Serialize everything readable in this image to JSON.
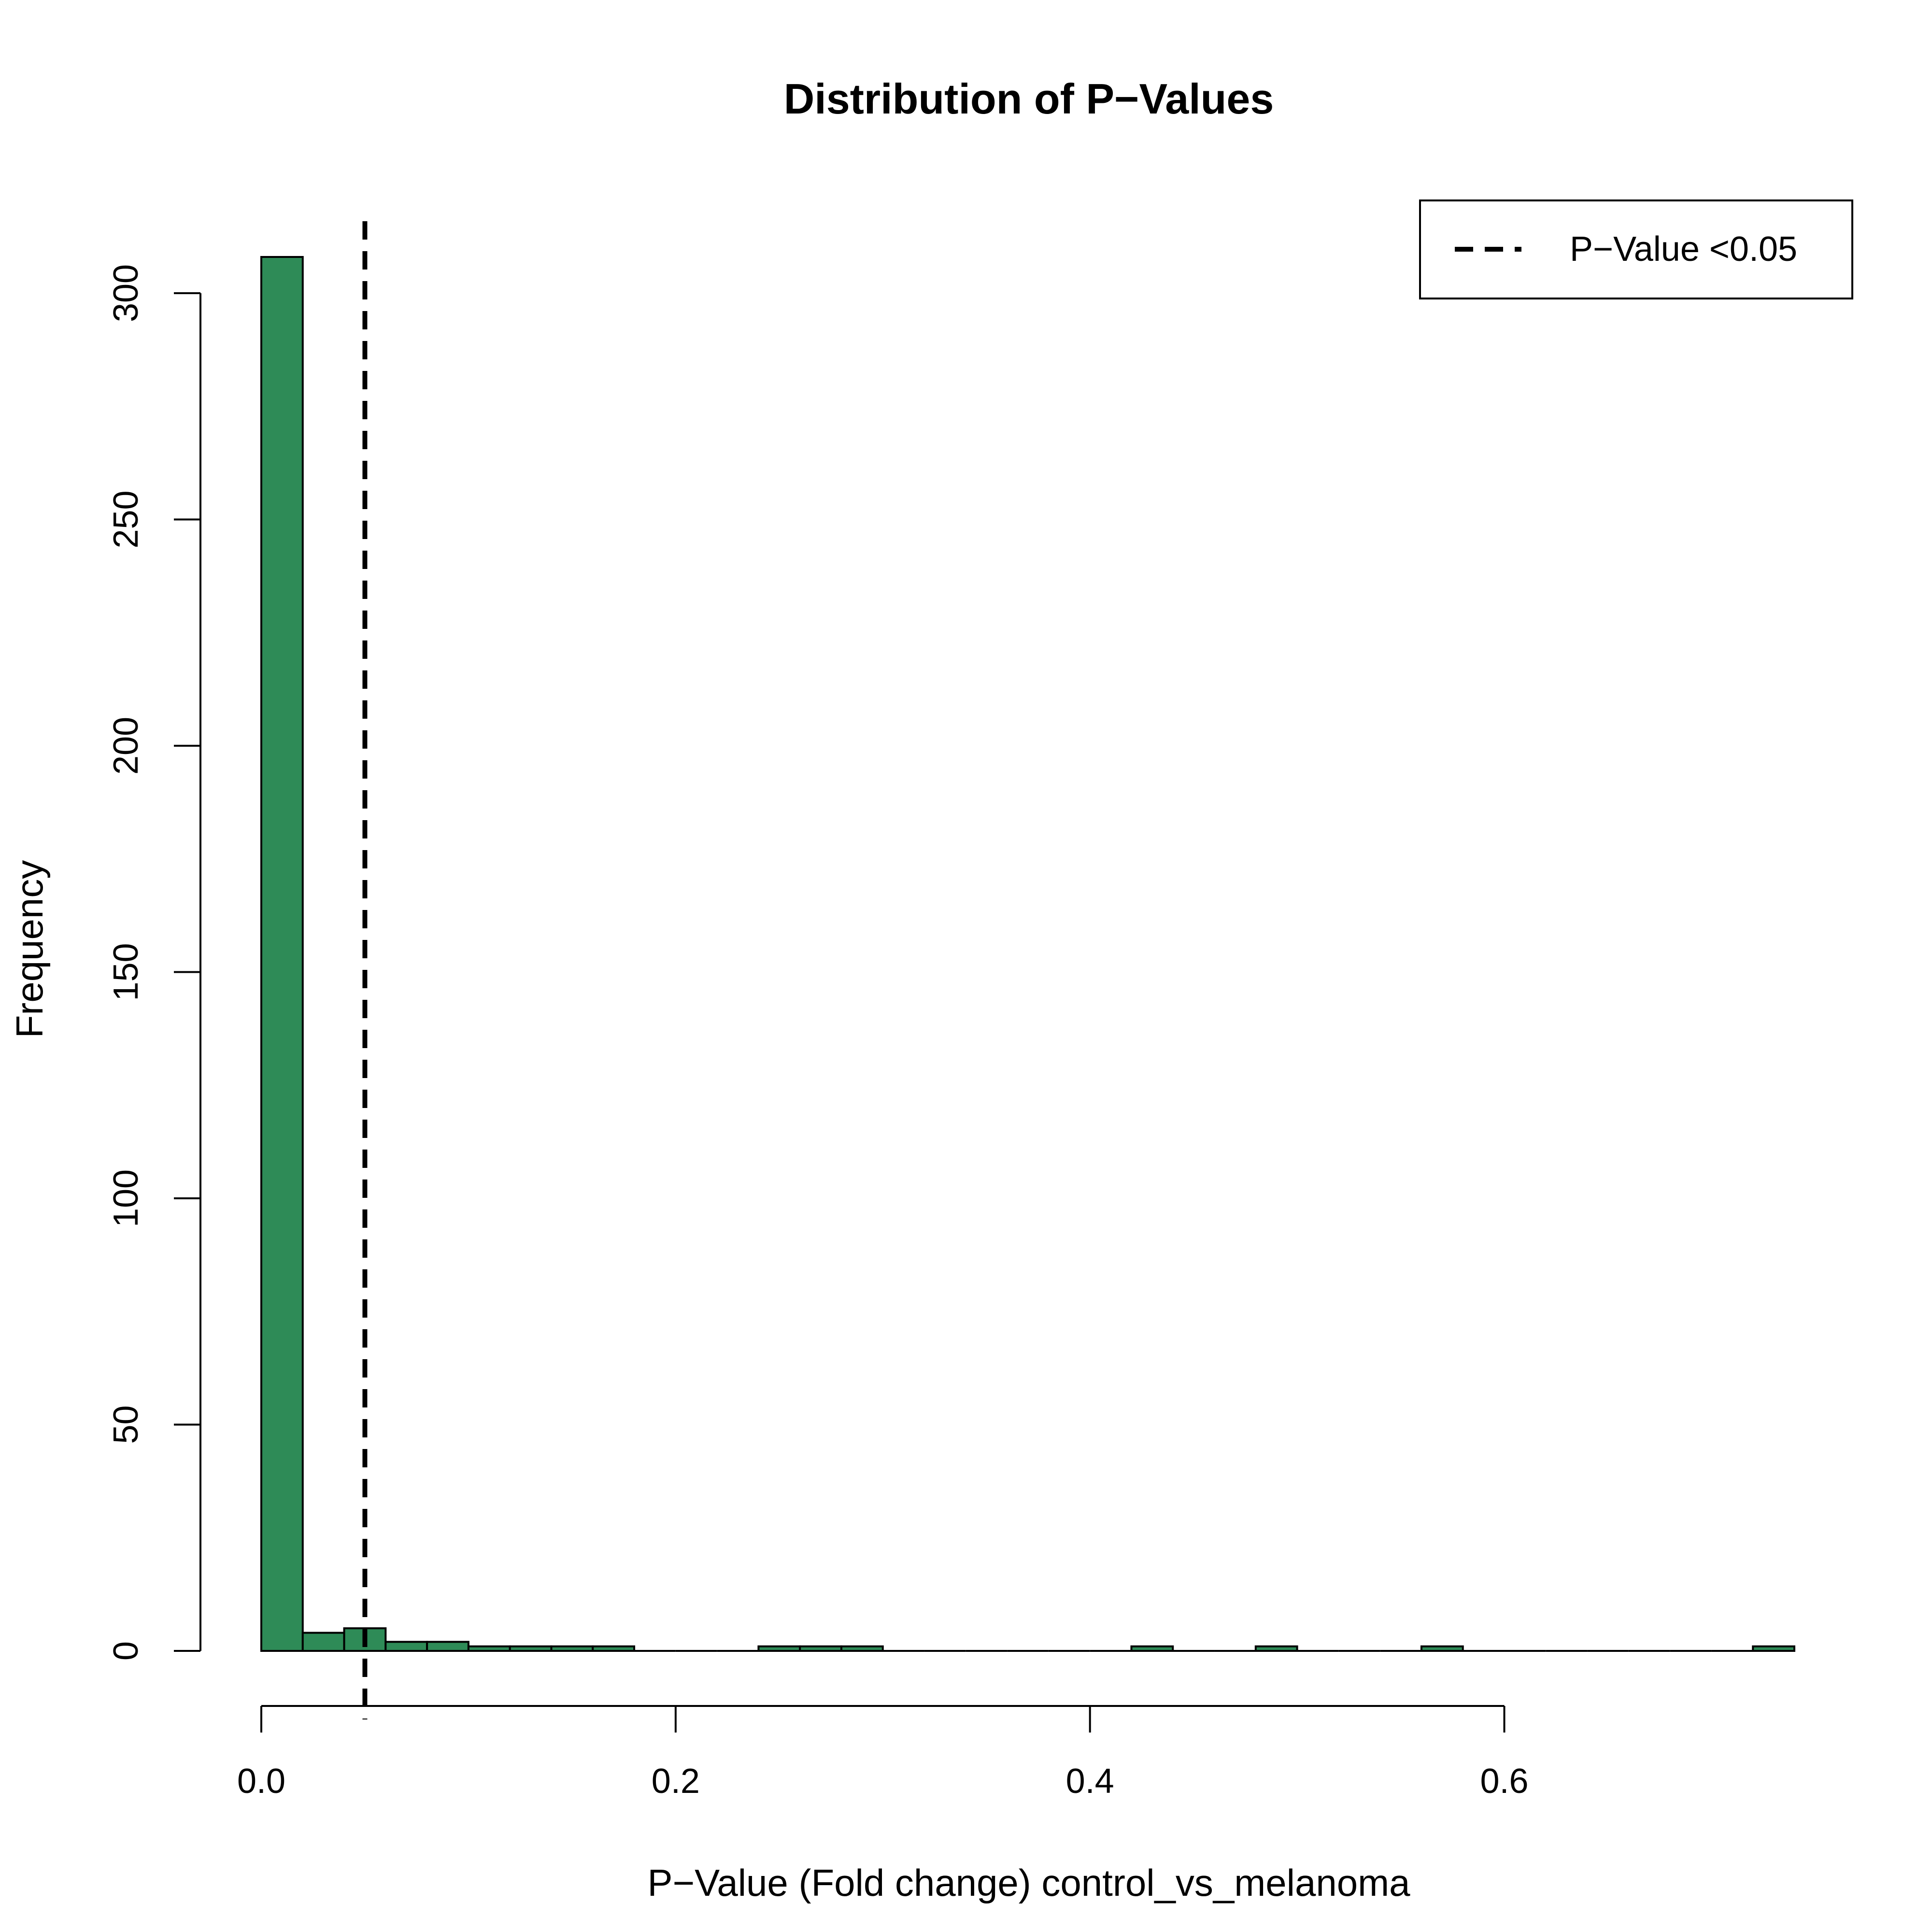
{
  "chart_data": {
    "type": "bar",
    "title": "Distribution of P−Values",
    "xlabel": "P−Value (Fold change) control_vs_melanoma",
    "ylabel": "Frequency",
    "bin_width": 0.02,
    "bins": [
      {
        "x0": 0.0,
        "x1": 0.02,
        "value": 308
      },
      {
        "x0": 0.02,
        "x1": 0.04,
        "value": 4
      },
      {
        "x0": 0.04,
        "x1": 0.06,
        "value": 5
      },
      {
        "x0": 0.06,
        "x1": 0.08,
        "value": 2
      },
      {
        "x0": 0.08,
        "x1": 0.1,
        "value": 2
      },
      {
        "x0": 0.1,
        "x1": 0.12,
        "value": 1
      },
      {
        "x0": 0.12,
        "x1": 0.14,
        "value": 1
      },
      {
        "x0": 0.14,
        "x1": 0.16,
        "value": 1
      },
      {
        "x0": 0.16,
        "x1": 0.18,
        "value": 1
      },
      {
        "x0": 0.18,
        "x1": 0.2,
        "value": 0
      },
      {
        "x0": 0.2,
        "x1": 0.22,
        "value": 0
      },
      {
        "x0": 0.22,
        "x1": 0.24,
        "value": 0
      },
      {
        "x0": 0.24,
        "x1": 0.26,
        "value": 1
      },
      {
        "x0": 0.26,
        "x1": 0.28,
        "value": 1
      },
      {
        "x0": 0.28,
        "x1": 0.3,
        "value": 1
      },
      {
        "x0": 0.3,
        "x1": 0.32,
        "value": 0
      },
      {
        "x0": 0.32,
        "x1": 0.34,
        "value": 0
      },
      {
        "x0": 0.34,
        "x1": 0.36,
        "value": 0
      },
      {
        "x0": 0.36,
        "x1": 0.38,
        "value": 0
      },
      {
        "x0": 0.38,
        "x1": 0.4,
        "value": 0
      },
      {
        "x0": 0.4,
        "x1": 0.42,
        "value": 0
      },
      {
        "x0": 0.42,
        "x1": 0.44,
        "value": 1
      },
      {
        "x0": 0.44,
        "x1": 0.46,
        "value": 0
      },
      {
        "x0": 0.46,
        "x1": 0.48,
        "value": 0
      },
      {
        "x0": 0.48,
        "x1": 0.5,
        "value": 1
      },
      {
        "x0": 0.5,
        "x1": 0.52,
        "value": 0
      },
      {
        "x0": 0.52,
        "x1": 0.54,
        "value": 0
      },
      {
        "x0": 0.54,
        "x1": 0.56,
        "value": 0
      },
      {
        "x0": 0.56,
        "x1": 0.58,
        "value": 1
      },
      {
        "x0": 0.58,
        "x1": 0.6,
        "value": 0
      },
      {
        "x0": 0.6,
        "x1": 0.62,
        "value": 0
      },
      {
        "x0": 0.62,
        "x1": 0.64,
        "value": 0
      },
      {
        "x0": 0.64,
        "x1": 0.66,
        "value": 0
      },
      {
        "x0": 0.66,
        "x1": 0.68,
        "value": 0
      },
      {
        "x0": 0.68,
        "x1": 0.7,
        "value": 0
      },
      {
        "x0": 0.7,
        "x1": 0.72,
        "value": 0
      },
      {
        "x0": 0.72,
        "x1": 0.74,
        "value": 1
      }
    ],
    "xlim": [
      0,
      0.74
    ],
    "ylim": [
      0,
      308
    ],
    "x_ticks": [
      0.0,
      0.2,
      0.4,
      0.6
    ],
    "x_tick_labels": [
      "0.0",
      "0.2",
      "0.4",
      "0.6"
    ],
    "y_ticks": [
      0,
      50,
      100,
      150,
      200,
      250,
      300
    ],
    "y_tick_labels": [
      "0",
      "50",
      "100",
      "150",
      "200",
      "250",
      "300"
    ],
    "reference_line": {
      "x": 0.05,
      "style": "dashed",
      "label": "P−Value <0.05"
    },
    "legend": {
      "position": "top-right",
      "entries": [
        {
          "label": "P−Value <0.05",
          "line": "dashed"
        }
      ]
    },
    "bar_color": "#2e8b57",
    "bar_border": "#000000",
    "grid": false
  }
}
